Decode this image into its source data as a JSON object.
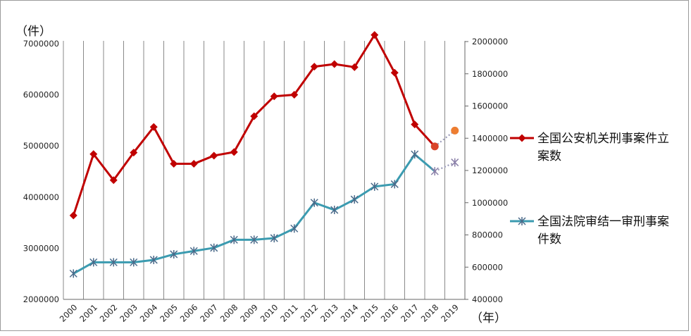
{
  "chart_data": {
    "type": "line",
    "y_unit_label": "（件）",
    "x_unit_label": "（年）",
    "categories": [
      "2000",
      "2001",
      "2002",
      "2003",
      "2004",
      "2005",
      "2006",
      "2007",
      "2008",
      "2009",
      "2010",
      "2011",
      "2012",
      "2013",
      "2014",
      "2015",
      "2016",
      "2017",
      "2018",
      "2019"
    ],
    "left_axis": {
      "min": 2000000,
      "max": 7500000,
      "ticks": [
        2000000,
        3000000,
        4000000,
        5000000,
        6000000,
        7000000
      ]
    },
    "right_axis": {
      "min": 400000,
      "max": 2000000,
      "ticks": [
        400000,
        600000,
        800000,
        1000000,
        1200000,
        1400000,
        1600000,
        1800000,
        2000000
      ]
    },
    "grid": "vertical",
    "legend_position": "right",
    "series": [
      {
        "name": "全国公安机关刑事案件立案数",
        "name_lines": [
          "全国公安机关刑事案件立",
          "案数"
        ],
        "axis": "left",
        "color": "#c00000",
        "marker": "diamond",
        "values": [
          3640000,
          4840000,
          4330000,
          4870000,
          5370000,
          4650000,
          4650000,
          4810000,
          4880000,
          5580000,
          5970000,
          6000000,
          6550000,
          6600000,
          6540000,
          7170000,
          6430000,
          5420000,
          4990000,
          5300000
        ],
        "estimated_from_index": 18,
        "estimate_color": "#ed7d31"
      },
      {
        "name": "全国法院审结一审刑事案件数",
        "name_lines": [
          "全国法院审结一审刑事案",
          "件数"
        ],
        "axis": "right",
        "color": "#3b9bb0",
        "marker": "star",
        "values": [
          560000,
          630000,
          630000,
          630000,
          645000,
          680000,
          700000,
          720000,
          770000,
          770000,
          780000,
          840000,
          1000000,
          955000,
          1020000,
          1100000,
          1115000,
          1300000,
          1195000,
          1250000
        ],
        "estimated_from_index": 18,
        "estimate_color": "#8a7fa8"
      }
    ]
  }
}
